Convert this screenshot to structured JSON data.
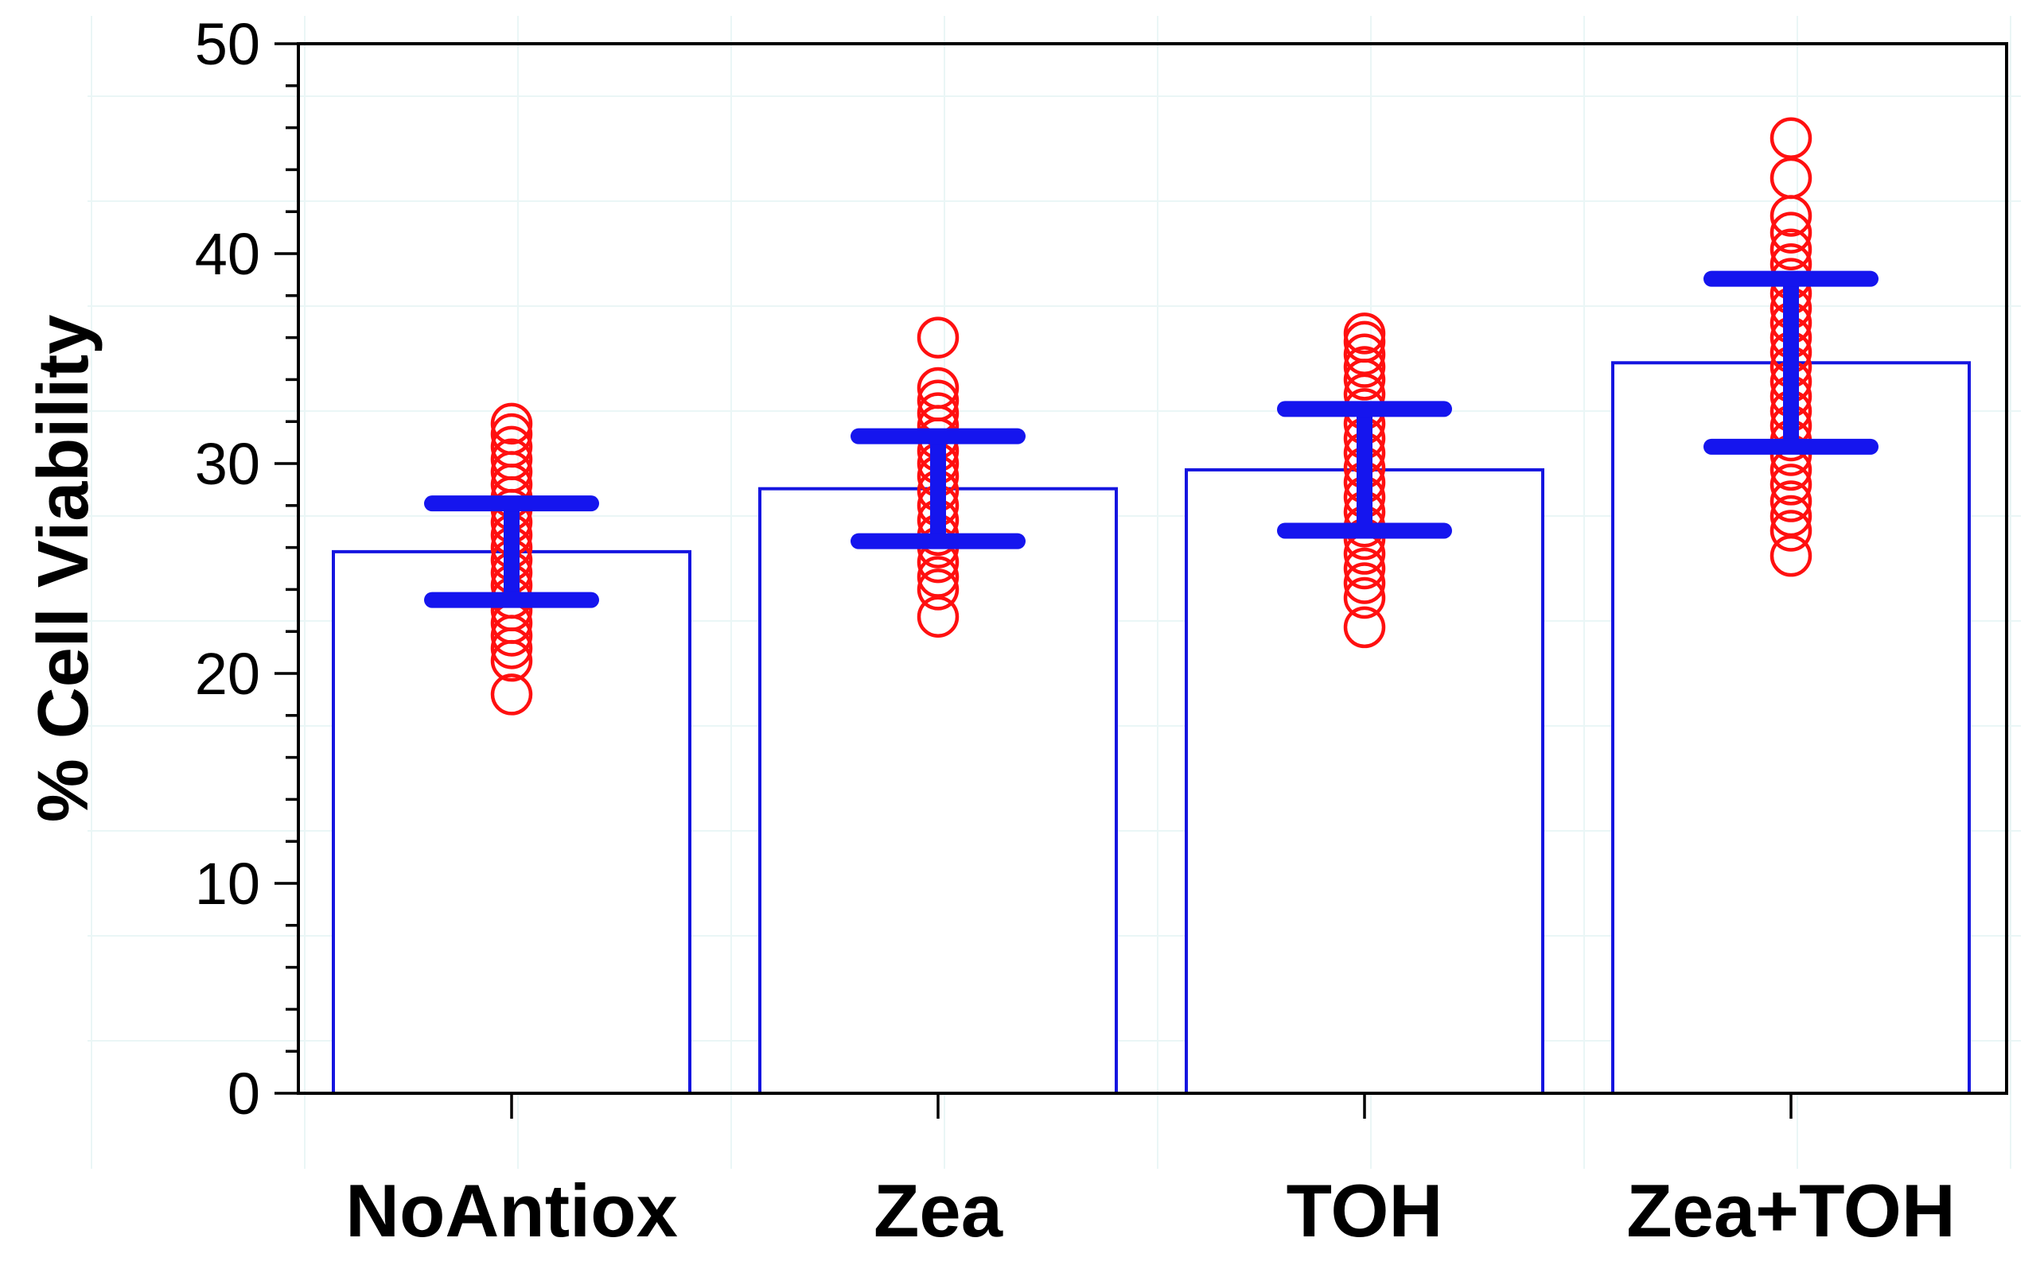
{
  "chart_data": {
    "type": "bar",
    "title": "",
    "xlabel": "",
    "ylabel": "% Cell Viability",
    "ylim": [
      0,
      50
    ],
    "yticks": [
      0,
      10,
      20,
      30,
      40,
      50
    ],
    "grid": false,
    "categories": [
      "NoAntiox",
      "Zea",
      "TOH",
      "Zea+TOH"
    ],
    "series": [
      {
        "values": [
          25.8,
          28.8,
          29.7,
          34.8
        ],
        "error_low": [
          23.5,
          26.3,
          26.8,
          30.8
        ],
        "error_high": [
          28.1,
          31.3,
          32.6,
          38.8
        ],
        "points": [
          [
            19.0,
            20.6,
            21.2,
            21.8,
            22.4,
            23.0,
            23.6,
            24.2,
            24.8,
            25.4,
            26.0,
            26.6,
            27.2,
            27.8,
            28.4,
            29.0,
            29.6,
            30.2,
            30.8,
            31.4,
            31.9
          ],
          [
            22.7,
            24.0,
            24.6,
            25.3,
            26.0,
            26.6,
            27.3,
            28.0,
            28.7,
            29.4,
            30.0,
            30.6,
            31.2,
            31.8,
            32.4,
            33.0,
            33.6,
            36.0
          ],
          [
            22.2,
            23.6,
            24.3,
            25.0,
            25.7,
            26.4,
            27.0,
            27.7,
            28.4,
            29.1,
            29.8,
            30.5,
            31.2,
            31.9,
            32.6,
            33.3,
            34.0,
            34.6,
            35.2,
            35.8,
            36.2
          ],
          [
            25.6,
            26.8,
            27.5,
            28.2,
            29.0,
            29.7,
            30.4,
            31.1,
            31.8,
            32.5,
            33.2,
            33.9,
            34.6,
            35.3,
            36.0,
            36.7,
            37.4,
            38.1,
            38.8,
            39.5,
            40.2,
            41.0,
            41.8,
            43.6,
            45.5
          ]
        ]
      }
    ],
    "colors": {
      "bar_outline": "#1515e0",
      "points": "#ff1010",
      "error_bars": "#1515ee"
    }
  }
}
